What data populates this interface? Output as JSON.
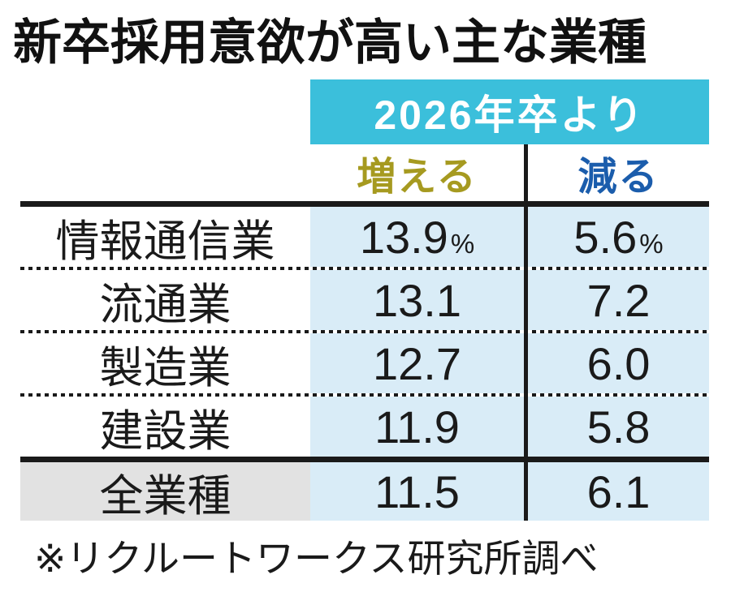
{
  "title": "新卒採用意欲が高い主な業種",
  "table": {
    "banner": "2026年卒より",
    "columns": [
      {
        "label": "増える",
        "color": "#a69a20"
      },
      {
        "label": "減る",
        "color": "#1b5dac"
      }
    ],
    "rows": [
      {
        "label": "情報通信業",
        "increase": "13.9",
        "increase_unit": "%",
        "decrease": "5.6",
        "decrease_unit": "%"
      },
      {
        "label": "流通業",
        "increase": "13.1",
        "decrease": "7.2"
      },
      {
        "label": "製造業",
        "increase": "12.7",
        "decrease": "6.0"
      },
      {
        "label": "建設業",
        "increase": "11.9",
        "decrease": "5.8"
      },
      {
        "label": "全業種",
        "increase": "11.5",
        "decrease": "6.1"
      }
    ]
  },
  "footnote": "※リクルートワークス研究所調べ",
  "colors": {
    "banner_bg": "#3bbfdb",
    "banner_text": "#ffffff",
    "value_column_bg": "#d9ecf7",
    "increase_text": "#a69a20",
    "decrease_text": "#1b5dac",
    "total_row_label_bg": "#e2e2e2",
    "rule": "#1a1a1a"
  },
  "chart_data": {
    "type": "table",
    "title": "新卒採用意欲が高い主な業種",
    "group_header": "2026年卒より",
    "columns": [
      "増える",
      "減る"
    ],
    "categories": [
      "情報通信業",
      "流通業",
      "製造業",
      "建設業",
      "全業種"
    ],
    "series": [
      {
        "name": "増える",
        "values": [
          13.9,
          13.1,
          12.7,
          11.9,
          11.5
        ]
      },
      {
        "name": "減る",
        "values": [
          5.6,
          7.2,
          6.0,
          5.8,
          6.1
        ]
      }
    ],
    "unit": "%",
    "source": "※リクルートワークス研究所調べ"
  }
}
